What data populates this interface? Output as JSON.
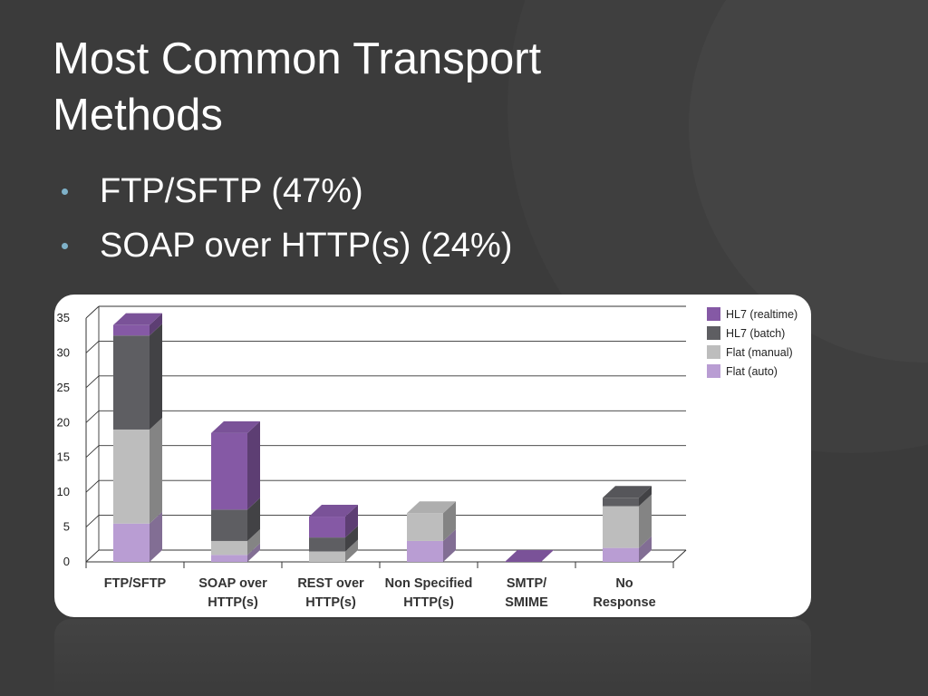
{
  "slide": {
    "title": "Most Common Transport Methods",
    "bullets": [
      "FTP/SFTP (47%)",
      "SOAP over HTTP(s) (24%)"
    ]
  },
  "colors": {
    "background": "#3b3b3b",
    "bullet": "#7fb2c9",
    "hl7_realtime": "#8559a5",
    "hl7_batch": "#5e5e62",
    "flat_manual": "#bdbdbd",
    "flat_auto": "#b99dd3"
  },
  "chart_data": {
    "type": "bar",
    "stacked": true,
    "three_d": true,
    "categories": [
      [
        "FTP/SFTP"
      ],
      [
        "SOAP over",
        "HTTP(s)"
      ],
      [
        "REST over",
        "HTTP(s)"
      ],
      [
        "Non Specified",
        "HTTP(s)"
      ],
      [
        "SMTP/",
        "SMIME"
      ],
      [
        "No",
        "Response"
      ]
    ],
    "series": [
      {
        "name": "Flat (auto)",
        "values": [
          5.5,
          1,
          0,
          3,
          0,
          2
        ]
      },
      {
        "name": "Flat (manual)",
        "values": [
          13.5,
          2,
          1.5,
          4,
          0,
          6
        ]
      },
      {
        "name": "HL7 (batch)",
        "values": [
          13.5,
          4.5,
          2,
          0,
          0,
          1.2
        ]
      },
      {
        "name": "HL7 (realtime)",
        "values": [
          1.5,
          11,
          3,
          0,
          0,
          0
        ]
      }
    ],
    "legend_order": [
      "HL7 (realtime)",
      "HL7 (batch)",
      "Flat (manual)",
      "Flat (auto)"
    ],
    "ylim": [
      0,
      35
    ],
    "yticks": [
      0,
      5,
      10,
      15,
      20,
      25,
      30,
      35
    ],
    "grid": true,
    "legend_position": "top-right"
  }
}
